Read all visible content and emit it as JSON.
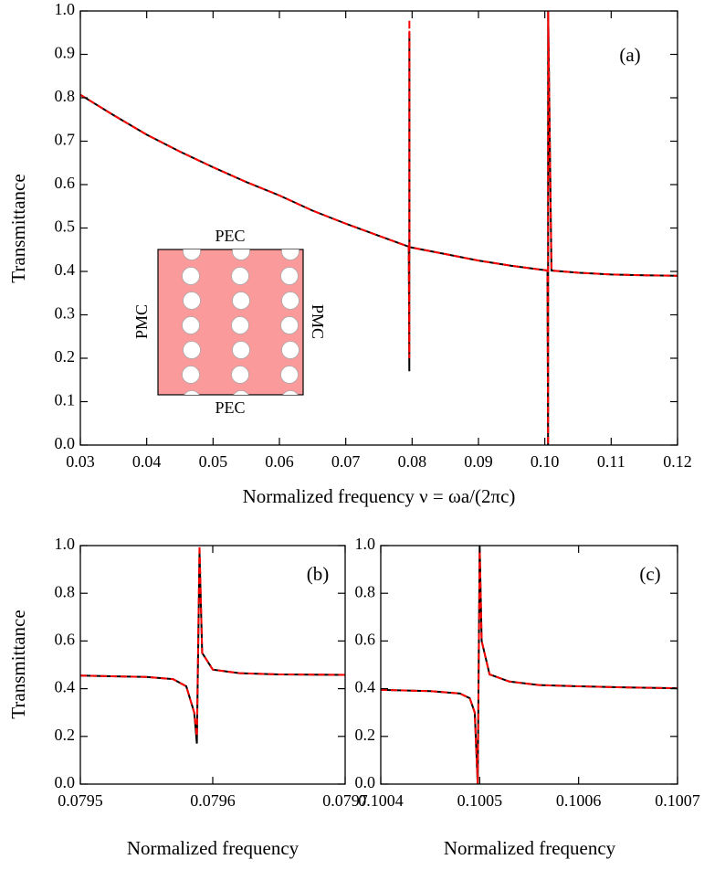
{
  "chart_data": [
    {
      "type": "line",
      "annotation": "(a)",
      "xlabel": "Normalized frequency  ν = ωa/(2πc)",
      "ylabel": "Transmittance",
      "inset_labels": {
        "top": "PEC",
        "bottom": "PEC",
        "left": "PMC",
        "right": "PMC"
      },
      "x": [
        0.03,
        0.035,
        0.04,
        0.045,
        0.05,
        0.055,
        0.06,
        0.065,
        0.07,
        0.075,
        0.0795,
        0.07958,
        0.07959,
        0.0796,
        0.085,
        0.09,
        0.095,
        0.1004,
        0.10049,
        0.1005,
        0.101,
        0.105,
        0.11,
        0.115,
        0.12
      ],
      "series": [
        {
          "color": "#000000",
          "values": [
            0.807,
            0.76,
            0.715,
            0.676,
            0.64,
            0.606,
            0.575,
            0.54,
            0.51,
            0.482,
            0.457,
            0.17,
            0.95,
            0.456,
            0.44,
            0.425,
            0.413,
            0.402,
            0.0,
            1.0,
            0.402,
            0.397,
            0.393,
            0.391,
            0.39
          ]
        },
        {
          "color": "#ff0000",
          "dashed": true,
          "values": [
            0.807,
            0.76,
            0.715,
            0.676,
            0.64,
            0.606,
            0.575,
            0.54,
            0.51,
            0.482,
            0.457,
            0.2,
            0.98,
            0.456,
            0.44,
            0.425,
            0.413,
            0.402,
            0.0,
            1.0,
            0.402,
            0.397,
            0.393,
            0.391,
            0.39
          ]
        }
      ],
      "xlim": [
        0.03,
        0.12
      ],
      "ylim": [
        0,
        1
      ],
      "xticks": [
        0.03,
        0.04,
        0.05,
        0.06,
        0.07,
        0.08,
        0.09,
        {
          "value": 0.1,
          "label": "0.10"
        },
        0.11,
        0.12
      ],
      "yticks": [
        {
          "value": 0,
          "label": "0.0"
        },
        0.1,
        0.2,
        0.3,
        0.4,
        0.5,
        0.6,
        0.7,
        0.8,
        0.9,
        {
          "value": 1,
          "label": "1.0"
        }
      ]
    },
    {
      "type": "line",
      "annotation": "(b)",
      "xlabel": "Normalized frequency",
      "ylabel": "Transmittance",
      "x": [
        0.0795,
        0.07955,
        0.07957,
        0.07958,
        0.079586,
        0.079588,
        0.07959,
        0.079592,
        0.0796,
        0.07962,
        0.07965,
        0.0797
      ],
      "series": [
        {
          "color": "#000000",
          "values": [
            0.455,
            0.449,
            0.44,
            0.41,
            0.3,
            0.17,
            0.97,
            0.55,
            0.48,
            0.465,
            0.46,
            0.458
          ]
        },
        {
          "color": "#ff0000",
          "dashed": true,
          "values": [
            0.455,
            0.449,
            0.44,
            0.41,
            0.3,
            0.2,
            1.0,
            0.55,
            0.48,
            0.465,
            0.46,
            0.458
          ]
        }
      ],
      "xlim": [
        0.0795,
        0.0797
      ],
      "ylim": [
        0,
        1
      ],
      "xticks": [
        0.0795,
        0.0796,
        0.0797
      ],
      "yticks": [
        {
          "value": 0,
          "label": "0.0"
        },
        0.2,
        0.4,
        0.6,
        0.8,
        {
          "value": 1,
          "label": "1.0"
        }
      ]
    },
    {
      "type": "line",
      "annotation": "(c)",
      "xlabel": "Normalized frequency",
      "x": [
        0.1004,
        0.10045,
        0.10048,
        0.10049,
        0.100495,
        0.100498,
        0.1005,
        0.100502,
        0.10051,
        0.10053,
        0.10056,
        0.1006,
        0.10065,
        0.1007
      ],
      "series": [
        {
          "color": "#000000",
          "values": [
            0.395,
            0.39,
            0.38,
            0.36,
            0.3,
            0.0,
            1.0,
            0.6,
            0.46,
            0.43,
            0.415,
            0.41,
            0.405,
            0.402
          ]
        },
        {
          "color": "#ff0000",
          "dashed": true,
          "values": [
            0.395,
            0.39,
            0.38,
            0.36,
            0.3,
            0.0,
            0.98,
            0.6,
            0.46,
            0.43,
            0.415,
            0.41,
            0.405,
            0.402
          ]
        }
      ],
      "xlim": [
        0.1004,
        0.1007
      ],
      "ylim": [
        0,
        1
      ],
      "xticks": [
        0.1004,
        0.1005,
        0.1006,
        0.1007
      ],
      "yticks": [
        {
          "value": 0,
          "label": "0.0"
        },
        0.2,
        0.4,
        0.6,
        0.8,
        {
          "value": 1,
          "label": "1.0"
        }
      ]
    }
  ]
}
